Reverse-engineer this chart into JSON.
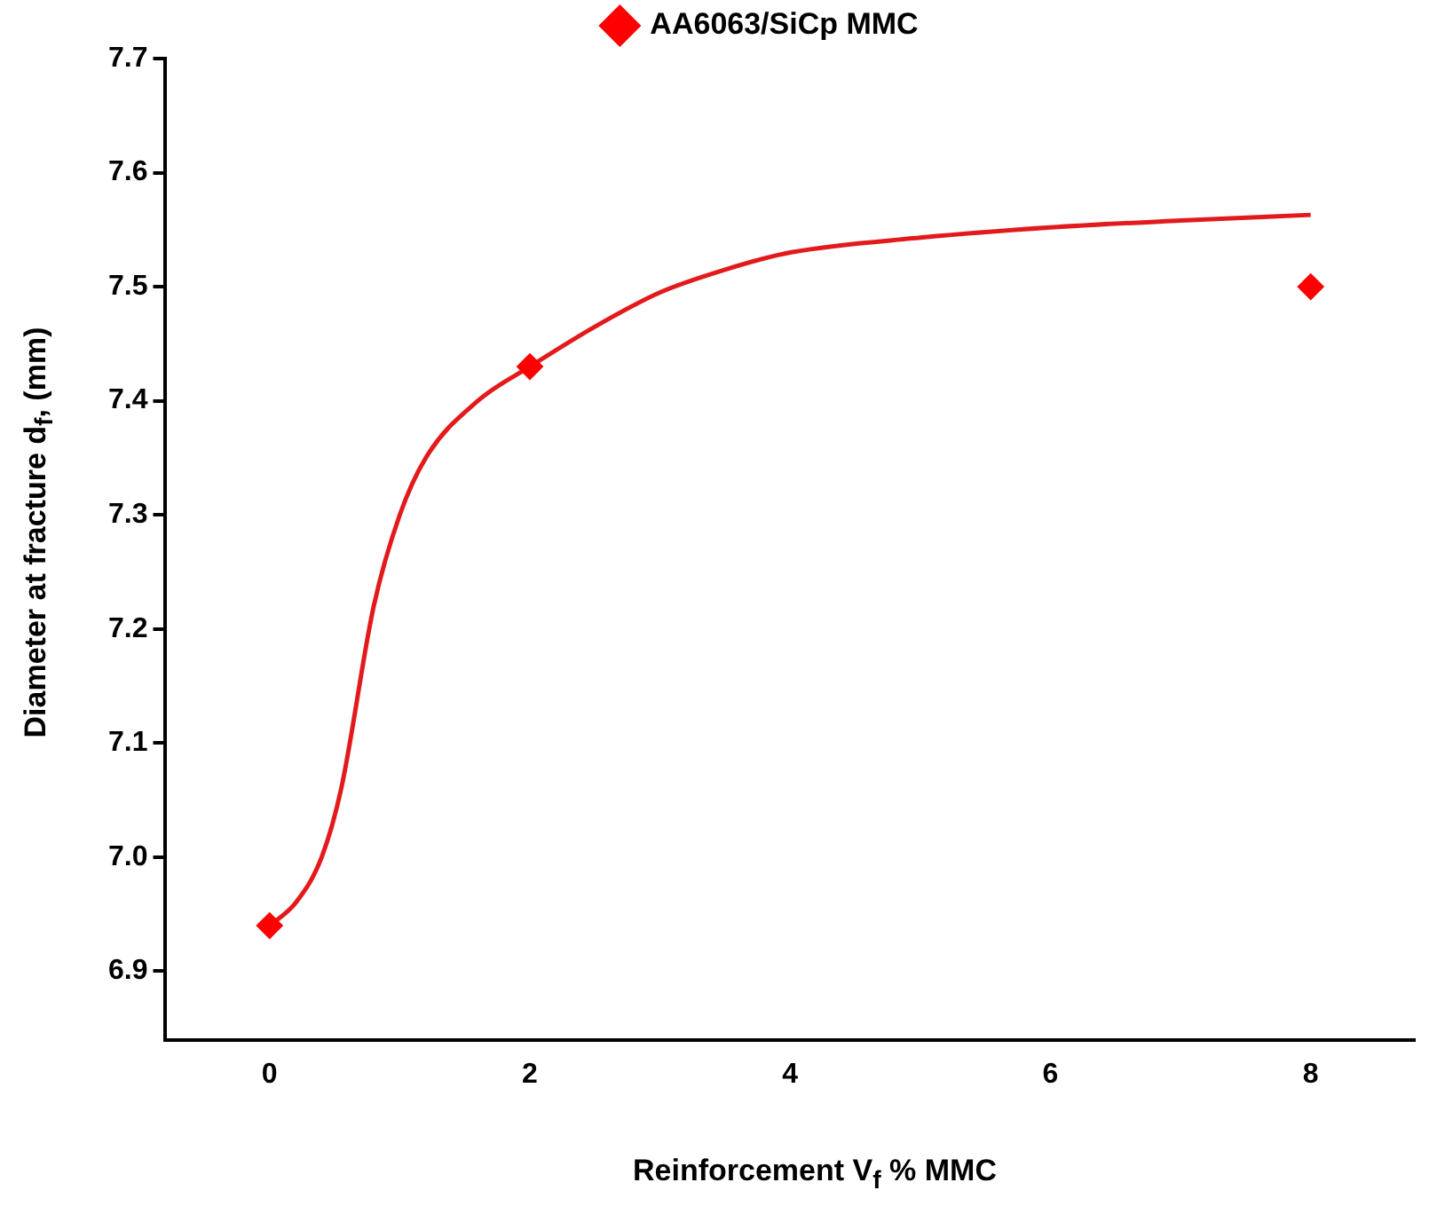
{
  "chart_data": {
    "type": "scatter",
    "xlabel": "Reinforcement V$_{f}$ % MMC",
    "ylabel": "Diameter at fracture d$_{f}$, (mm)",
    "xlim": [
      -0.8,
      8.8
    ],
    "xticks": [
      0,
      2,
      4,
      6,
      8
    ],
    "ylim": [
      6.84,
      7.7
    ],
    "yticks": [
      {
        "value": 6.9,
        "label": "6.9"
      },
      {
        "value": 7.0,
        "label": "7.0"
      },
      {
        "value": 7.1,
        "label": "7.1"
      },
      {
        "value": 7.2,
        "label": "7.2"
      },
      {
        "value": 7.3,
        "label": "7.3"
      },
      {
        "value": 7.4,
        "label": "7.4"
      },
      {
        "value": 7.5,
        "label": "7.5"
      },
      {
        "value": 7.6,
        "label": "7.6"
      },
      {
        "value": 7.7,
        "label": "7.7"
      }
    ],
    "legend": "top",
    "grid": false,
    "marker": "diamond",
    "series": [
      {
        "name": "AA6063/SiCp MMC",
        "color": "#ff0000",
        "x": [
          0,
          2,
          8
        ],
        "values": [
          6.94,
          7.43,
          7.5
        ]
      },
      {
        "type": "line",
        "color": "#e31a1c",
        "marker": "none",
        "line_style": "solid",
        "x": [
          0,
          0.2,
          0.4,
          0.55,
          0.8,
          1,
          1.2,
          1.6,
          2,
          2.5,
          3,
          3.5,
          4,
          5,
          6,
          7,
          8
        ],
        "values": [
          6.94,
          6.96,
          7.0,
          7.06,
          7.22,
          7.3,
          7.35,
          7.4,
          7.43,
          7.465,
          7.495,
          7.515,
          7.53,
          7.543,
          7.552,
          7.558,
          7.563
        ]
      }
    ]
  }
}
